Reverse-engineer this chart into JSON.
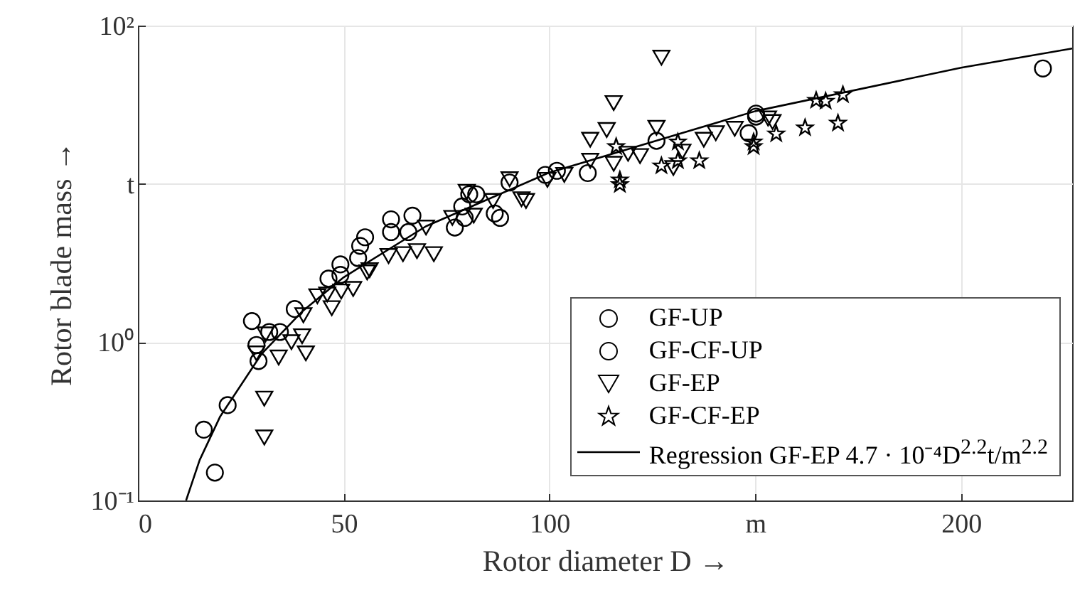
{
  "chart_data": {
    "type": "scatter",
    "xlabel": "Rotor diameter D →",
    "ylabel": "Rotor blade mass →",
    "log": "y",
    "grid": true,
    "legend": "bottom right",
    "xlim": [
      0,
      227
    ],
    "ylim": [
      0.1,
      100
    ],
    "xticks": [
      0,
      50,
      100,
      {
        "value": 150,
        "label": "m"
      },
      200
    ],
    "yticks": [
      {
        "value": 0.1,
        "label": "10⁻¹"
      },
      {
        "value": 1,
        "label": "10⁰"
      },
      {
        "value": 10,
        "label": "t"
      },
      {
        "value": 100,
        "label": "10²"
      }
    ],
    "series": [
      {
        "name": "GF-UP",
        "color": "#000000",
        "marker": "circle",
        "x": [
          16,
          18.7,
          21.8,
          27.7,
          28.8,
          29.3,
          31.9,
          34.5,
          38.1,
          46.3,
          49.2,
          49.2,
          53.5,
          55.2,
          54,
          61.5,
          61.5,
          65.7,
          66.7,
          80.5,
          82.2,
          78.8,
          77,
          88,
          90.3,
          79.4,
          86.7,
          126,
          150.2,
          150.2,
          148.4,
          109.3,
          99,
          101.8
        ],
        "values": [
          0.28,
          0.15,
          0.4,
          1.36,
          0.96,
          0.76,
          1.16,
          1.16,
          1.62,
          2.52,
          2.66,
          3.1,
          3.4,
          4.6,
          4.06,
          5.97,
          4.96,
          4.96,
          6.3,
          8.6,
          8.6,
          7.2,
          5.3,
          6.1,
          10.2,
          6.1,
          6.5,
          18.7,
          27.8,
          26.6,
          20.9,
          11.7,
          11.4,
          12.1
        ]
      },
      {
        "name": "GF-CF-UP",
        "color": "#000000",
        "marker": "circle",
        "x": [
          219.9
        ],
        "values": [
          53.6
        ]
      },
      {
        "name": "GF-EP",
        "color": "#000000",
        "marker": "triangle",
        "x": [
          31,
          28.8,
          30.7,
          30.7,
          34.2,
          37.3,
          39.9,
          40.8,
          40.2,
          43.6,
          47.1,
          49.4,
          52.3,
          55.7,
          46,
          56.3,
          60.9,
          64.4,
          67.8,
          71.9,
          70,
          76.4,
          81.6,
          79.9,
          86.3,
          90.3,
          93.2,
          94.3,
          99.5,
          103.6,
          109.9,
          109.9,
          113.9,
          115.6,
          115.6,
          119.1,
          122,
          126,
          127.2,
          130.1,
          132.3,
          137.5,
          140.4,
          145,
          153.1,
          154.2
        ],
        "values": [
          1.12,
          0.85,
          0.44,
          0.25,
          0.8,
          1,
          1.09,
          0.85,
          1.48,
          1.95,
          1.64,
          2.09,
          2.17,
          2.76,
          2,
          2.85,
          3.5,
          3.6,
          3.76,
          3.6,
          5.3,
          6.1,
          6.3,
          8.9,
          7.8,
          10.7,
          8,
          7.8,
          10.6,
          11.4,
          19,
          14,
          21.9,
          32.4,
          13.4,
          15.5,
          15,
          22.6,
          62.7,
          12.6,
          16,
          19,
          20.9,
          22.3,
          25.9,
          24.6
        ]
      },
      {
        "name": "GF-CF-EP",
        "color": "#000000",
        "marker": "star",
        "x": [
          117.1,
          117.1,
          131.2,
          131.2,
          136.4,
          127.2,
          149.6,
          149.6,
          155.1,
          162.1,
          170.1,
          164.8,
          167.1,
          171.3,
          116.2
        ],
        "values": [
          10.6,
          9.9,
          18.4,
          14,
          14,
          13,
          18.4,
          17.2,
          20.7,
          22.6,
          24.2,
          33.7,
          33.3,
          36.6,
          17.2
        ]
      },
      {
        "name": "Regression GF-EP 4.7 · 10⁻⁴D$^{2.2}$t/m$^{2.2}$",
        "type": "line",
        "color": "#000000",
        "marker": "none",
        "line_style": "solid",
        "x": [
          11.7,
          15,
          20,
          30,
          40,
          50,
          70,
          100,
          150,
          200,
          227
        ],
        "values": [
          0.1,
          0.18,
          0.34,
          0.84,
          1.57,
          2.57,
          5.4,
          11.8,
          28.8,
          54.2,
          71.7
        ]
      }
    ]
  }
}
